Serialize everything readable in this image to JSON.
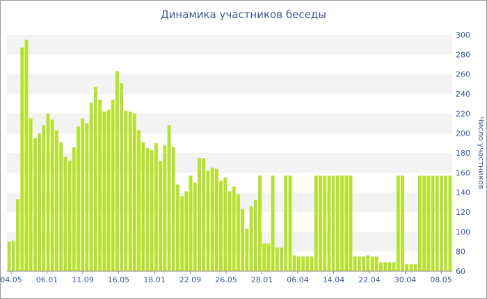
{
  "chart_data": {
    "type": "bar",
    "title": "Динамика участников беседы",
    "ylabel": "Число участников",
    "ylim": [
      60,
      300
    ],
    "yticks": [
      60,
      80,
      100,
      120,
      140,
      160,
      180,
      200,
      220,
      240,
      260,
      280,
      300
    ],
    "xtick_labels": [
      "04.05",
      "06.01",
      "11.09",
      "16.05",
      "18.01",
      "22.09",
      "26.05",
      "28.01",
      "06.04",
      "14.04",
      "22.04",
      "30.04",
      "08.05"
    ],
    "bar_color": "#b6e22e",
    "grid": "alternating horizontal bands",
    "values": [
      90,
      91,
      133,
      287,
      295,
      215,
      195,
      200,
      208,
      220,
      214,
      203,
      191,
      176,
      172,
      186,
      207,
      215,
      210,
      231,
      247,
      234,
      222,
      224,
      234,
      263,
      251,
      223,
      222,
      220,
      203,
      191,
      185,
      183,
      190,
      172,
      188,
      208,
      186,
      148,
      136,
      141,
      157,
      150,
      175,
      175,
      162,
      165,
      164,
      152,
      155,
      141,
      146,
      138,
      123,
      103,
      126,
      132,
      157,
      88,
      88,
      157,
      84,
      84,
      157,
      157,
      76,
      75,
      75,
      75,
      75,
      157,
      157,
      157,
      157,
      157,
      157,
      157,
      157,
      157,
      75,
      75,
      75,
      76,
      75,
      75,
      69,
      69,
      69,
      69,
      157,
      157,
      67,
      67,
      67,
      157,
      157,
      157,
      157,
      157,
      157,
      157,
      157
    ]
  }
}
